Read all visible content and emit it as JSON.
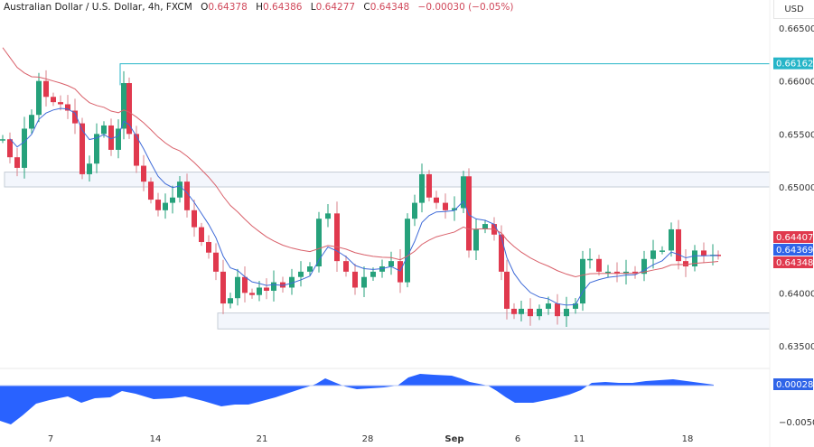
{
  "header": {
    "symbol_title": "Australian Dollar / U.S. Dollar, 4h, FXCM",
    "open_label": "O",
    "open": "0.64378",
    "high_label": "H",
    "high": "0.64386",
    "low_label": "L",
    "low": "0.64277",
    "close_label": "C",
    "close": "0.64348",
    "change": "−0.00030 (−0.05%)"
  },
  "price_axis": {
    "currency": "USD",
    "ticks": [
      {
        "label": "0.66500",
        "value": 0.665
      },
      {
        "label": "0.66000",
        "value": 0.66
      },
      {
        "label": "0.65500",
        "value": 0.655
      },
      {
        "label": "0.65000",
        "value": 0.65
      },
      {
        "label": "0.64000",
        "value": 0.64
      },
      {
        "label": "0.63500",
        "value": 0.635
      }
    ],
    "tags": [
      {
        "label": "0.66162",
        "value": 0.66162,
        "color": "#26b5c8"
      },
      {
        "label": "0.64407",
        "value": 0.64407,
        "color": "#e0394e",
        "y": 256
      },
      {
        "label": "0.64369",
        "value": 0.64369,
        "color": "#2f64e8",
        "y": 270
      },
      {
        "label": "0.64348",
        "value": 0.64348,
        "color": "#e0394e",
        "y": 284
      }
    ]
  },
  "oscillator": {
    "value_tag": "0.00028",
    "tag_color": "#2f64e8",
    "ticks": [
      {
        "label": "−0.00500",
        "value": -0.005
      }
    ]
  },
  "time_axis": {
    "ticks": [
      {
        "label": "7",
        "x": 56,
        "bold": false
      },
      {
        "label": "14",
        "x": 172,
        "bold": false
      },
      {
        "label": "21",
        "x": 290,
        "bold": false
      },
      {
        "label": "28",
        "x": 407,
        "bold": false
      },
      {
        "label": "Sep",
        "x": 503,
        "bold": true
      },
      {
        "label": "6",
        "x": 573,
        "bold": false
      },
      {
        "label": "11",
        "x": 641,
        "bold": false
      },
      {
        "label": "18",
        "x": 761,
        "bold": false
      }
    ]
  },
  "colors": {
    "up": "#26a17b",
    "down": "#e0394e",
    "ma_fast": "#3f6bd8",
    "ma_slow": "#d9606a",
    "zone_fill": "#f3f6fc",
    "zone_border": "#c5cdd6",
    "level_line": "#26b5c8",
    "oscillator": "#2962ff"
  },
  "chart_data": {
    "type": "candlestick",
    "title": "Australian Dollar / U.S. Dollar, 4h, FXCM",
    "xlabel": "",
    "ylabel": "USD",
    "ylim": [
      0.6345,
      0.6675
    ],
    "x_tick_labels": [
      "7",
      "14",
      "21",
      "28",
      "Sep",
      "6",
      "11",
      "18"
    ],
    "y_tick_labels": [
      "0.66500",
      "0.66000",
      "0.65500",
      "0.65000",
      "0.64000",
      "0.63500"
    ],
    "last_ohlc": {
      "open": 0.64378,
      "high": 0.64386,
      "low": 0.64277,
      "close": 0.64348,
      "change": -0.0003,
      "change_pct": -0.05
    },
    "horizontal_level": {
      "price": 0.66162,
      "start_x": 133
    },
    "zones": [
      {
        "name": "resistance",
        "top": 0.6514,
        "bottom": 0.65,
        "x_start": 5
      },
      {
        "name": "support",
        "top": 0.6381,
        "bottom": 0.6366,
        "x_start": 241
      }
    ],
    "moving_averages": [
      {
        "name": "fast MA",
        "last": 0.64369,
        "color": "#3f6bd8"
      },
      {
        "name": "slow MA",
        "last": 0.64407,
        "color": "#d9606a"
      }
    ],
    "series_close_path": [
      [
        0,
        0.6545
      ],
      [
        8,
        0.6528
      ],
      [
        16,
        0.6518
      ],
      [
        24,
        0.6555
      ],
      [
        32,
        0.6568
      ],
      [
        40,
        0.66
      ],
      [
        48,
        0.6585
      ],
      [
        56,
        0.658
      ],
      [
        64,
        0.6578
      ],
      [
        72,
        0.6572
      ],
      [
        80,
        0.656
      ],
      [
        88,
        0.6512
      ],
      [
        96,
        0.6522
      ],
      [
        104,
        0.655
      ],
      [
        112,
        0.6558
      ],
      [
        120,
        0.6535
      ],
      [
        128,
        0.6555
      ],
      [
        134,
        0.6598
      ],
      [
        140,
        0.655
      ],
      [
        148,
        0.652
      ],
      [
        156,
        0.6505
      ],
      [
        164,
        0.6488
      ],
      [
        172,
        0.6478
      ],
      [
        180,
        0.6485
      ],
      [
        188,
        0.649
      ],
      [
        196,
        0.6505
      ],
      [
        204,
        0.6478
      ],
      [
        212,
        0.6462
      ],
      [
        220,
        0.6448
      ],
      [
        228,
        0.6438
      ],
      [
        236,
        0.642
      ],
      [
        244,
        0.639
      ],
      [
        252,
        0.6395
      ],
      [
        260,
        0.6415
      ],
      [
        268,
        0.64
      ],
      [
        276,
        0.6398
      ],
      [
        284,
        0.6405
      ],
      [
        292,
        0.6402
      ],
      [
        300,
        0.641
      ],
      [
        310,
        0.6405
      ],
      [
        320,
        0.6415
      ],
      [
        330,
        0.642
      ],
      [
        340,
        0.6425
      ],
      [
        350,
        0.647
      ],
      [
        360,
        0.6475
      ],
      [
        370,
        0.643
      ],
      [
        380,
        0.642
      ],
      [
        390,
        0.6405
      ],
      [
        400,
        0.6415
      ],
      [
        410,
        0.642
      ],
      [
        420,
        0.6425
      ],
      [
        430,
        0.643
      ],
      [
        440,
        0.641
      ],
      [
        448,
        0.647
      ],
      [
        456,
        0.6485
      ],
      [
        464,
        0.6512
      ],
      [
        472,
        0.649
      ],
      [
        480,
        0.6485
      ],
      [
        490,
        0.6478
      ],
      [
        500,
        0.648
      ],
      [
        510,
        0.651
      ],
      [
        516,
        0.644
      ],
      [
        524,
        0.646
      ],
      [
        534,
        0.6465
      ],
      [
        544,
        0.6455
      ],
      [
        552,
        0.642
      ],
      [
        558,
        0.6385
      ],
      [
        566,
        0.638
      ],
      [
        574,
        0.6385
      ],
      [
        584,
        0.6378
      ],
      [
        594,
        0.6385
      ],
      [
        604,
        0.639
      ],
      [
        614,
        0.6378
      ],
      [
        624,
        0.6385
      ],
      [
        634,
        0.639
      ],
      [
        642,
        0.6432
      ],
      [
        650,
        0.6432
      ],
      [
        660,
        0.642
      ],
      [
        670,
        0.642
      ],
      [
        680,
        0.6418
      ],
      [
        690,
        0.642
      ],
      [
        700,
        0.6418
      ],
      [
        710,
        0.6432
      ],
      [
        720,
        0.644
      ],
      [
        730,
        0.644
      ],
      [
        740,
        0.646
      ],
      [
        748,
        0.643
      ],
      [
        756,
        0.6425
      ],
      [
        766,
        0.644
      ],
      [
        776,
        0.6435
      ],
      [
        786,
        0.6436
      ],
      [
        792,
        0.6435
      ]
    ],
    "oscillator": {
      "name": "histogram/area oscillator",
      "last": 0.00028,
      "y_tick": -0.005
    }
  }
}
